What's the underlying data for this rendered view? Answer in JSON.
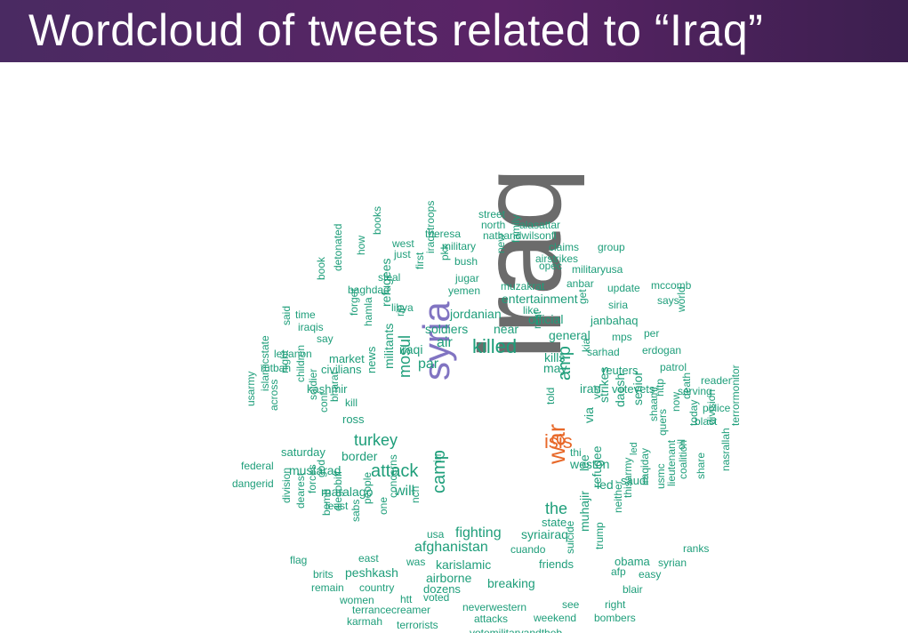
{
  "title": "Wordcloud of tweets related to “Iraq”",
  "colors": {
    "big": "#6b6b6b",
    "syria": "#8174c2",
    "orange": "#e8692a",
    "green": "#1e9e7a",
    "teal": "#2fb08b"
  },
  "words": [
    {
      "t": "iraq",
      "c": "big"
    },
    {
      "t": "syria",
      "c": "syria"
    },
    {
      "t": "isis",
      "c": "orange"
    },
    {
      "t": "war",
      "c": "orange"
    },
    {
      "t": "killed",
      "c": "green"
    },
    {
      "t": "attack",
      "c": "green"
    },
    {
      "t": "turkey",
      "c": "green"
    },
    {
      "t": "mosul",
      "c": "green"
    },
    {
      "t": "amp",
      "c": "green"
    },
    {
      "t": "the",
      "c": "green"
    },
    {
      "t": "camp",
      "c": "green"
    },
    {
      "t": "fighting",
      "c": "green"
    },
    {
      "t": "afghanistan",
      "c": "green"
    },
    {
      "t": "weston",
      "c": "green"
    },
    {
      "t": "may",
      "c": "green"
    },
    {
      "t": "iran",
      "c": "green"
    },
    {
      "t": "kills",
      "c": "green"
    },
    {
      "t": "soldiers",
      "c": "green"
    },
    {
      "t": "near",
      "c": "green"
    },
    {
      "t": "jordanian",
      "c": "green"
    },
    {
      "t": "official",
      "c": "green"
    },
    {
      "t": "general",
      "c": "green"
    },
    {
      "t": "entertainment",
      "c": "green"
    },
    {
      "t": "border",
      "c": "green"
    },
    {
      "t": "par",
      "c": "green"
    },
    {
      "t": "air",
      "c": "green"
    },
    {
      "t": "iraqi",
      "c": "green"
    },
    {
      "t": "militants",
      "c": "green"
    },
    {
      "t": "refugees",
      "c": "green"
    },
    {
      "t": "news",
      "c": "green"
    },
    {
      "t": "will",
      "c": "green"
    },
    {
      "t": "maralago",
      "c": "green"
    },
    {
      "t": "mustarad",
      "c": "green"
    },
    {
      "t": "saturday",
      "c": "green"
    },
    {
      "t": "ross",
      "c": "green"
    },
    {
      "t": "kashmir",
      "c": "green"
    },
    {
      "t": "civilians",
      "c": "green"
    },
    {
      "t": "market",
      "c": "green"
    },
    {
      "t": "lebanon",
      "c": "green"
    },
    {
      "t": "rutbah",
      "c": "green"
    },
    {
      "t": "federal",
      "c": "green"
    },
    {
      "t": "dangerid",
      "c": "green"
    },
    {
      "t": "syriairaq",
      "c": "green"
    },
    {
      "t": "state",
      "c": "green"
    },
    {
      "t": "cuando",
      "c": "green"
    },
    {
      "t": "karislamic",
      "c": "green"
    },
    {
      "t": "friends",
      "c": "green"
    },
    {
      "t": "breaking",
      "c": "green"
    },
    {
      "t": "airborne",
      "c": "green"
    },
    {
      "t": "dozens",
      "c": "green"
    },
    {
      "t": "peshkash",
      "c": "green"
    },
    {
      "t": "country",
      "c": "green"
    },
    {
      "t": "remain",
      "c": "green"
    },
    {
      "t": "brits",
      "c": "green"
    },
    {
      "t": "flag",
      "c": "green"
    },
    {
      "t": "women",
      "c": "green"
    },
    {
      "t": "htt",
      "c": "green"
    },
    {
      "t": "voted",
      "c": "green"
    },
    {
      "t": "terrancecreamer",
      "c": "green"
    },
    {
      "t": "karmah",
      "c": "green"
    },
    {
      "t": "terrorists",
      "c": "green"
    },
    {
      "t": "neverwestern",
      "c": "green"
    },
    {
      "t": "attacks",
      "c": "green"
    },
    {
      "t": "weekend",
      "c": "green"
    },
    {
      "t": "bombers",
      "c": "green"
    },
    {
      "t": "see",
      "c": "green"
    },
    {
      "t": "right",
      "c": "green"
    },
    {
      "t": "blair",
      "c": "green"
    },
    {
      "t": "easy",
      "c": "green"
    },
    {
      "t": "obama",
      "c": "green"
    },
    {
      "t": "syrian",
      "c": "green"
    },
    {
      "t": "afp",
      "c": "green"
    },
    {
      "t": "ranks",
      "c": "green"
    },
    {
      "t": "refugee",
      "c": "green"
    },
    {
      "t": "trump",
      "c": "green"
    },
    {
      "t": "suicide",
      "c": "green"
    },
    {
      "t": "muhajir",
      "c": "green"
    },
    {
      "t": "lee",
      "c": "green"
    },
    {
      "t": "ied",
      "c": "green"
    },
    {
      "t": "saudi",
      "c": "green"
    },
    {
      "t": "strikes",
      "c": "green"
    },
    {
      "t": "daesh",
      "c": "green"
    },
    {
      "t": "via",
      "c": "green"
    },
    {
      "t": "vet",
      "c": "green"
    },
    {
      "t": "senior",
      "c": "green"
    },
    {
      "t": "told",
      "c": "green"
    },
    {
      "t": "thi",
      "c": "green"
    },
    {
      "t": "votevets",
      "c": "green"
    },
    {
      "t": "serving",
      "c": "green"
    },
    {
      "t": "police",
      "c": "green"
    },
    {
      "t": "reader",
      "c": "green"
    },
    {
      "t": "patrol",
      "c": "green"
    },
    {
      "t": "reuters",
      "c": "green"
    },
    {
      "t": "sarhad",
      "c": "green"
    },
    {
      "t": "erdogan",
      "c": "green"
    },
    {
      "t": "mps",
      "c": "green"
    },
    {
      "t": "per",
      "c": "green"
    },
    {
      "t": "janbahaq",
      "c": "green"
    },
    {
      "t": "siria",
      "c": "green"
    },
    {
      "t": "says",
      "c": "green"
    },
    {
      "t": "update",
      "c": "green"
    },
    {
      "t": "mccomb",
      "c": "green"
    },
    {
      "t": "anbar",
      "c": "green"
    },
    {
      "t": "muzakrat",
      "c": "green"
    },
    {
      "t": "yemen",
      "c": "green"
    },
    {
      "t": "jugar",
      "c": "green"
    },
    {
      "t": "bush",
      "c": "green"
    },
    {
      "t": "military",
      "c": "green"
    },
    {
      "t": "theresa",
      "c": "green"
    },
    {
      "t": "west",
      "c": "green"
    },
    {
      "t": "just",
      "c": "green"
    },
    {
      "t": "steal",
      "c": "green"
    },
    {
      "t": "baghdad",
      "c": "green"
    },
    {
      "t": "libya",
      "c": "green"
    },
    {
      "t": "iraqis",
      "c": "green"
    },
    {
      "t": "time",
      "c": "green"
    },
    {
      "t": "say",
      "c": "green"
    },
    {
      "t": "street",
      "c": "green"
    },
    {
      "t": "north",
      "c": "green"
    },
    {
      "t": "alasattar",
      "c": "green"
    },
    {
      "t": "nathandwilsonfl",
      "c": "green"
    },
    {
      "t": "claims",
      "c": "green"
    },
    {
      "t": "group",
      "c": "green"
    },
    {
      "t": "airstrikes",
      "c": "green"
    },
    {
      "t": "opec",
      "c": "green"
    },
    {
      "t": "militaryusa",
      "c": "green"
    },
    {
      "t": "like",
      "c": "green"
    },
    {
      "t": "usa",
      "c": "green"
    },
    {
      "t": "was",
      "c": "green"
    },
    {
      "t": "east",
      "c": "green"
    },
    {
      "t": "least",
      "c": "green"
    },
    {
      "t": "concerns",
      "c": "green"
    },
    {
      "t": "nch",
      "c": "green"
    },
    {
      "t": "irn",
      "c": "green"
    },
    {
      "t": "book",
      "c": "green"
    },
    {
      "t": "how",
      "c": "green"
    },
    {
      "t": "books",
      "c": "green"
    },
    {
      "t": "first",
      "c": "green"
    },
    {
      "t": "iraqstroops",
      "c": "green"
    },
    {
      "t": "pkk",
      "c": "green"
    },
    {
      "t": "new",
      "c": "green"
    },
    {
      "t": "family",
      "c": "green"
    },
    {
      "t": "rip",
      "c": "green"
    },
    {
      "t": "detonated",
      "c": "green"
    },
    {
      "t": "forget",
      "c": "green"
    },
    {
      "t": "said",
      "c": "green"
    },
    {
      "t": "hamla",
      "c": "green"
    },
    {
      "t": "night",
      "c": "green"
    },
    {
      "t": "islamicstate",
      "c": "green"
    },
    {
      "t": "usarmy",
      "c": "green"
    },
    {
      "t": "across",
      "c": "green"
    },
    {
      "t": "children",
      "c": "green"
    },
    {
      "t": "soldier",
      "c": "green"
    },
    {
      "t": "conf",
      "c": "green"
    },
    {
      "t": "bharat",
      "c": "green"
    },
    {
      "t": "kill",
      "c": "green"
    },
    {
      "t": "god",
      "c": "green"
    },
    {
      "t": "division",
      "c": "green"
    },
    {
      "t": "dearest",
      "c": "green"
    },
    {
      "t": "forces",
      "c": "green"
    },
    {
      "t": "bomb",
      "c": "green"
    },
    {
      "t": "diegobiff",
      "c": "green"
    },
    {
      "t": "sabs",
      "c": "green"
    },
    {
      "t": "people",
      "c": "green"
    },
    {
      "t": "one",
      "c": "green"
    },
    {
      "t": "get",
      "c": "green"
    },
    {
      "t": "rest",
      "c": "green"
    },
    {
      "t": "kia",
      "c": "green"
    },
    {
      "t": "neither",
      "c": "green"
    },
    {
      "t": "thisarmy",
      "c": "green"
    },
    {
      "t": "iraqiday",
      "c": "green"
    },
    {
      "t": "usmc",
      "c": "green"
    },
    {
      "t": "lieutenant",
      "c": "green"
    },
    {
      "t": "coalition",
      "c": "green"
    },
    {
      "t": "share",
      "c": "green"
    },
    {
      "t": "shaami",
      "c": "green"
    },
    {
      "t": "quers",
      "c": "green"
    },
    {
      "t": "http",
      "c": "green"
    },
    {
      "t": "oil",
      "c": "green"
    },
    {
      "t": "now",
      "c": "green"
    },
    {
      "t": "today",
      "c": "green"
    },
    {
      "t": "death",
      "c": "green"
    },
    {
      "t": "division",
      "c": "green"
    },
    {
      "t": "nasrallah",
      "c": "green"
    },
    {
      "t": "terrormonitor",
      "c": "green"
    },
    {
      "t": "blast",
      "c": "green"
    },
    {
      "t": "world",
      "c": "green"
    },
    {
      "t": "led",
      "c": "green"
    },
    {
      "t": "votemilitaryandtheb",
      "c": "green"
    }
  ]
}
